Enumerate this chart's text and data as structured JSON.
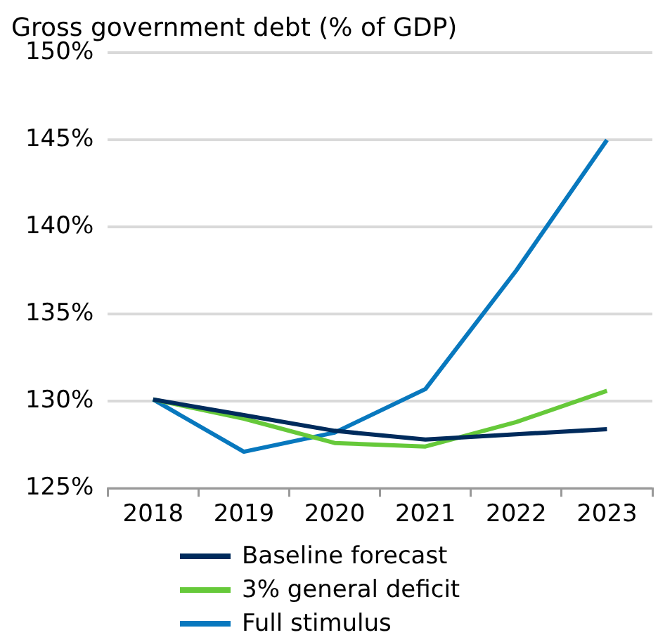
{
  "chart_data": {
    "type": "line",
    "title": "Gross government debt (% of GDP)",
    "categories": [
      "2018",
      "2019",
      "2020",
      "2021",
      "2022",
      "2023"
    ],
    "series": [
      {
        "name": "Baseline forecast",
        "color": "#002b5c",
        "values": [
          130.1,
          129.2,
          128.3,
          127.8,
          128.1,
          128.4
        ]
      },
      {
        "name": "3% general deficit",
        "color": "#66c93a",
        "values": [
          130.1,
          129.0,
          127.6,
          127.4,
          128.8,
          130.6
        ]
      },
      {
        "name": "Full stimulus",
        "color": "#0878be",
        "values": [
          130.1,
          127.1,
          128.2,
          130.7,
          137.5,
          145.0
        ]
      }
    ],
    "ylim": [
      125,
      150
    ],
    "yticks": [
      {
        "value": 125,
        "label": "125%"
      },
      {
        "value": 130,
        "label": "130%"
      },
      {
        "value": 135,
        "label": "135%"
      },
      {
        "value": 140,
        "label": "140%"
      },
      {
        "value": 145,
        "label": "145%"
      },
      {
        "value": 150,
        "label": "150%"
      }
    ],
    "grid": "y",
    "legend": "bottom",
    "marker": "none",
    "line_style": "solid"
  }
}
